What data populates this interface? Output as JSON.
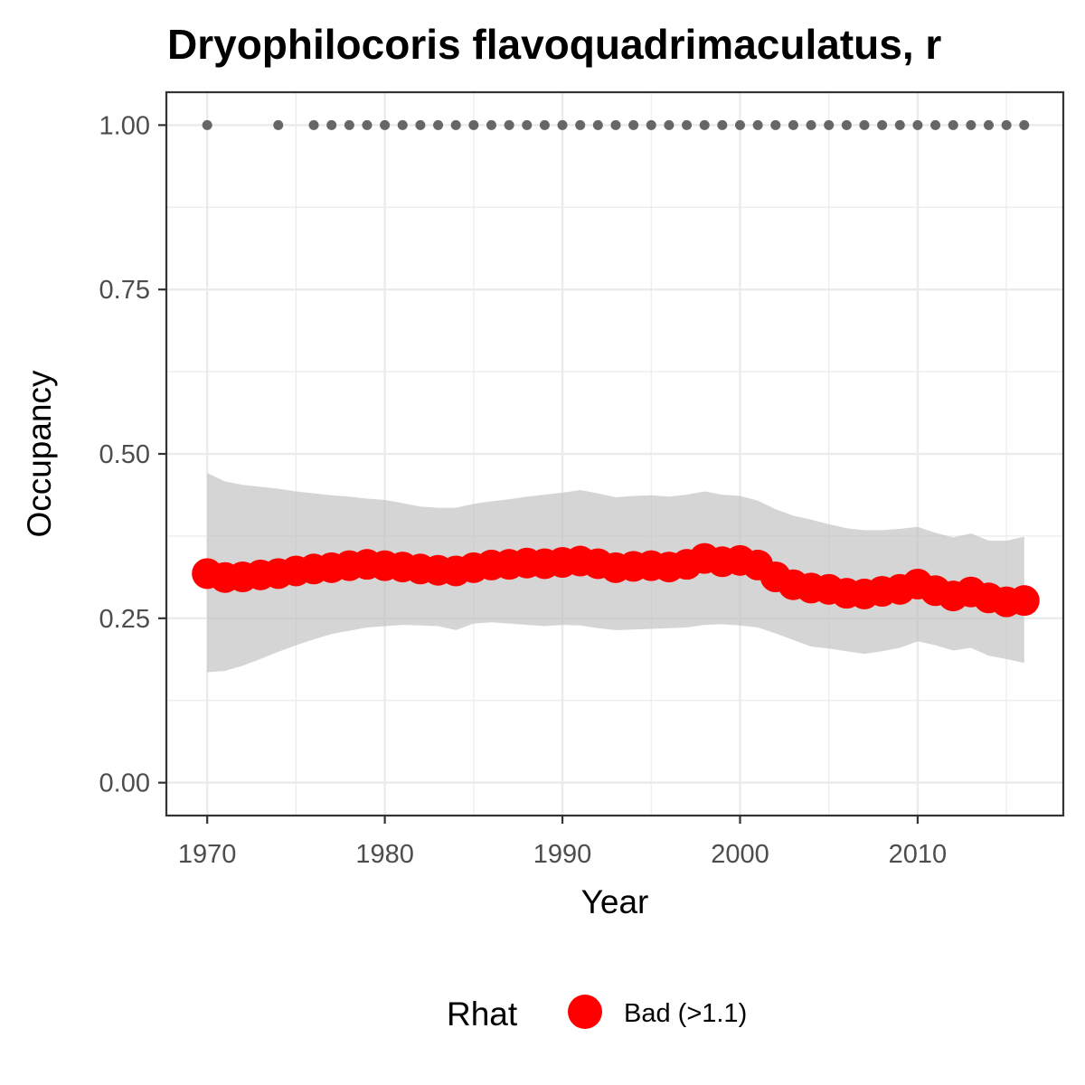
{
  "chart_data": {
    "type": "line",
    "title": "Dryophilocoris flavoquadrimaculatus, r",
    "xlabel": "Year",
    "ylabel": "Occupancy",
    "xlim": [
      1967.7,
      2018.2
    ],
    "ylim": [
      -0.05,
      1.05
    ],
    "x_ticks": [
      1970,
      1980,
      1990,
      2000,
      2010
    ],
    "x_tick_labels": [
      "1970",
      "1980",
      "1990",
      "2000",
      "2010"
    ],
    "y_ticks": [
      0,
      0.25,
      0.5,
      0.75,
      1.0
    ],
    "y_tick_labels": [
      "0.00",
      "0.25",
      "0.50",
      "0.75",
      "1.00"
    ],
    "grid": true,
    "legend": {
      "title": "Rhat",
      "position": "bottom",
      "entries": [
        {
          "label": "Bad (>1.1)",
          "color": "#ff0000"
        }
      ]
    },
    "x": [
      1970,
      1971,
      1972,
      1973,
      1974,
      1975,
      1976,
      1977,
      1978,
      1979,
      1980,
      1981,
      1982,
      1983,
      1984,
      1985,
      1986,
      1987,
      1988,
      1989,
      1990,
      1991,
      1992,
      1993,
      1994,
      1995,
      1996,
      1997,
      1998,
      1999,
      2000,
      2001,
      2002,
      2003,
      2004,
      2005,
      2006,
      2007,
      2008,
      2009,
      2010,
      2011,
      2012,
      2013,
      2014,
      2015,
      2016
    ],
    "series": [
      {
        "name": "Bad (>1.1)",
        "color": "#ff0000",
        "values": [
          0.318,
          0.312,
          0.313,
          0.316,
          0.318,
          0.322,
          0.325,
          0.327,
          0.33,
          0.332,
          0.33,
          0.328,
          0.325,
          0.323,
          0.322,
          0.327,
          0.331,
          0.332,
          0.334,
          0.333,
          0.335,
          0.337,
          0.333,
          0.327,
          0.329,
          0.33,
          0.328,
          0.332,
          0.341,
          0.336,
          0.338,
          0.331,
          0.313,
          0.301,
          0.296,
          0.294,
          0.288,
          0.287,
          0.291,
          0.294,
          0.302,
          0.292,
          0.284,
          0.29,
          0.281,
          0.275,
          0.277
        ]
      }
    ],
    "ci_lower": [
      0.168,
      0.17,
      0.178,
      0.188,
      0.199,
      0.209,
      0.218,
      0.226,
      0.231,
      0.236,
      0.238,
      0.24,
      0.239,
      0.238,
      0.232,
      0.242,
      0.244,
      0.242,
      0.24,
      0.238,
      0.24,
      0.239,
      0.235,
      0.232,
      0.233,
      0.234,
      0.235,
      0.236,
      0.24,
      0.241,
      0.239,
      0.236,
      0.227,
      0.217,
      0.207,
      0.204,
      0.2,
      0.196,
      0.2,
      0.205,
      0.215,
      0.209,
      0.201,
      0.205,
      0.193,
      0.188,
      0.182
    ],
    "ci_upper": [
      0.471,
      0.458,
      0.453,
      0.45,
      0.447,
      0.443,
      0.44,
      0.437,
      0.435,
      0.432,
      0.43,
      0.425,
      0.42,
      0.418,
      0.418,
      0.424,
      0.428,
      0.431,
      0.435,
      0.438,
      0.441,
      0.445,
      0.44,
      0.434,
      0.436,
      0.437,
      0.435,
      0.438,
      0.443,
      0.438,
      0.436,
      0.429,
      0.416,
      0.406,
      0.4,
      0.393,
      0.387,
      0.384,
      0.384,
      0.386,
      0.389,
      0.38,
      0.373,
      0.379,
      0.368,
      0.368,
      0.374
    ],
    "records": {
      "color": "#666666",
      "x": [
        1970,
        1974,
        1976,
        1977,
        1978,
        1979,
        1980,
        1981,
        1982,
        1983,
        1984,
        1985,
        1986,
        1987,
        1988,
        1989,
        1990,
        1991,
        1992,
        1993,
        1994,
        1995,
        1996,
        1997,
        1998,
        1999,
        2000,
        2001,
        2002,
        2003,
        2004,
        2005,
        2006,
        2007,
        2008,
        2009,
        2010,
        2011,
        2012,
        2013,
        2014,
        2015,
        2016
      ],
      "y": 1.0
    }
  }
}
